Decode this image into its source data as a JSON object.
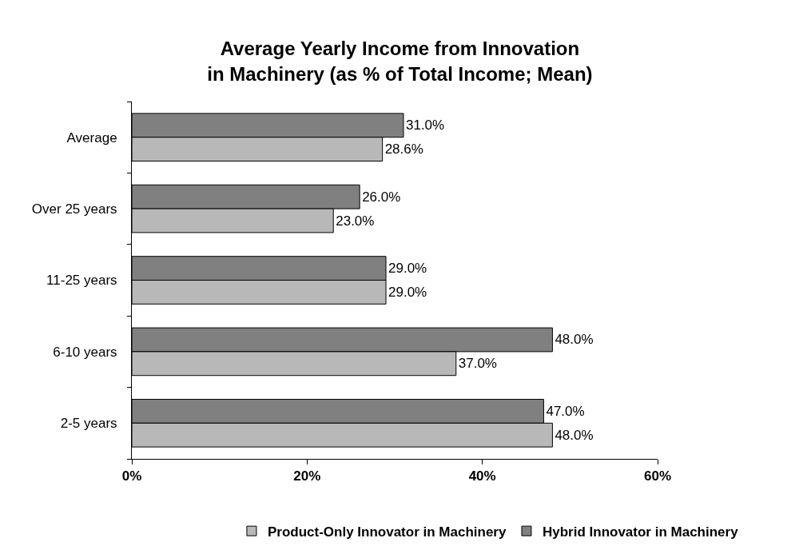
{
  "chart_data": {
    "type": "bar",
    "orientation": "horizontal",
    "title": "Average Yearly Income from Innovation\nin Machinery (as % of Total Income; Mean)",
    "categories": [
      "Average",
      "Over 25 years",
      "11-25 years",
      "6-10 years",
      "2-5 years"
    ],
    "series": [
      {
        "name": "Product-Only Innovator in Machinery",
        "color": "#b8b8b8",
        "values": [
          28.6,
          23,
          29,
          37,
          48
        ],
        "value_labels": [
          "28.6%",
          "23.0%",
          "29.0%",
          "37.0%",
          "48.0%"
        ]
      },
      {
        "name": "Hybrid Innovator in Machinery",
        "color": "#808080",
        "values": [
          31,
          26,
          29,
          48,
          47
        ],
        "value_labels": [
          "31.0%",
          "26.0%",
          "29.0%",
          "48.0%",
          "47.0%"
        ]
      }
    ],
    "xlim": [
      0,
      60
    ],
    "xticks": [
      {
        "value": 0,
        "label": "0%"
      },
      {
        "value": 20,
        "label": "20%"
      },
      {
        "value": 40,
        "label": "40%"
      },
      {
        "value": 60,
        "label": "60%"
      }
    ],
    "legend": "bottom"
  }
}
